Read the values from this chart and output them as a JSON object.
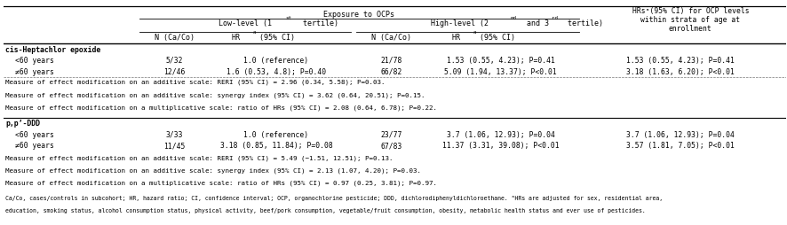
{
  "title_main": "Exposure to OCPs",
  "col_header_last": "HRsᵃ(95% CI) for OCP levels\nwithin strata of age at\nenrollment",
  "col_n_ca_co": "N (Ca/Co)",
  "section1_label": "cis-Heptachlor epoxide",
  "s1_r1_label": "<60 years",
  "s1_r1_n_low": "5/32",
  "s1_r1_hr_low": "1.0 (reference)",
  "s1_r1_n_high": "21/78",
  "s1_r1_hr_high": "1.53 (0.55, 4.23); P=0.41",
  "s1_r1_hr_strata": "1.53 (0.55, 4.23); P=0.41",
  "s1_r2_label": "≠60 years",
  "s1_r2_n_low": "12/46",
  "s1_r2_hr_low": "1.6 (0.53, 4.8); P=0.40",
  "s1_r2_n_high": "66/82",
  "s1_r2_hr_high": "5.09 (1.94, 13.37); P<0.01",
  "s1_r2_hr_strata": "3.18 (1.63, 6.20); P<0.01",
  "s1_note1": "Measure of effect modification on an additive scale: RERI (95% CI) = 2.96 (0.34, 5.58); P=0.03.",
  "s1_note2": "Measure of effect modification on an additive scale: synergy index (95% CI) = 3.62 (0.64, 20.51); P=0.15.",
  "s1_note3": "Measure of effect modification on a multiplicative scale: ratio of HRs (95% CI) = 2.08 (0.64, 6.78); P=0.22.",
  "section2_label": "p,p’-DDD",
  "s2_r1_label": "<60 years",
  "s2_r1_n_low": "3/33",
  "s2_r1_hr_low": "1.0 (reference)",
  "s2_r1_n_high": "23/77",
  "s2_r1_hr_high": "3.7 (1.06, 12.93); P=0.04",
  "s2_r1_hr_strata": "3.7 (1.06, 12.93); P=0.04",
  "s2_r2_label": "≠60 years",
  "s2_r2_n_low": "11/45",
  "s2_r2_hr_low": "3.18 (0.85, 11.84); P=0.08",
  "s2_r2_n_high": "67/83",
  "s2_r2_hr_high": "11.37 (3.31, 39.08); P<0.01",
  "s2_r2_hr_strata": "3.57 (1.81, 7.05); P<0.01",
  "s2_note1": "Measure of effect modification on an additive scale: RERI (95% CI) = 5.49 (−1.51, 12.51); P=0.13.",
  "s2_note2": "Measure of effect modification on an additive scale: synergy index (95% CI) = 2.13 (1.07, 4.20); P=0.03.",
  "s2_note3": "Measure of effect modification on a multiplicative scale: ratio of HRs (95% CI) = 0.97 (0.25, 3.81); P=0.97.",
  "footnote1": "Ca/Co, cases/controls in subcohort; HR, hazard ratio; CI, confidence interval; OCP, organochlorine pesticide; DDD, dichlorodiphenyldichloroethane. ᵃHRs are adjusted for sex, residential area,",
  "footnote2": "education, smoking status, alcohol consumption status, physical activity, beef/pork consumption, vegetable/fruit consumption, obesity, metabolic health status and ever use of pesticides.",
  "bg_color": "#ffffff",
  "text_color": "#000000"
}
